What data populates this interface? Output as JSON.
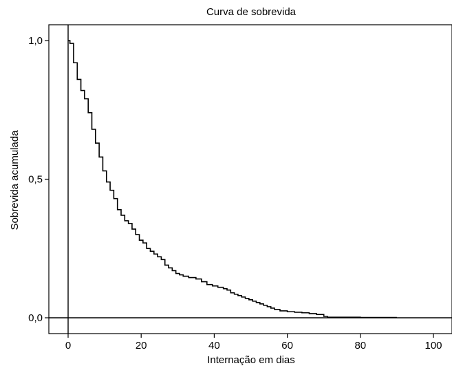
{
  "chart_data": {
    "type": "line",
    "title": "Curva de sobrevida",
    "xlabel": "Internação em dias",
    "ylabel": "Sobrevida acumulada",
    "xlim": [
      -5,
      105
    ],
    "ylim": [
      -0.06,
      1.05
    ],
    "x_ticks": [
      0,
      20,
      40,
      60,
      80,
      100
    ],
    "x_tick_labels": [
      "0",
      "20",
      "40",
      "60",
      "80",
      "100"
    ],
    "y_ticks": [
      0,
      0.5,
      1.0
    ],
    "y_tick_labels": [
      "0,0",
      "0,5",
      "1,0"
    ],
    "grid": false,
    "reference_lines": {
      "x": 0,
      "y": 0
    },
    "colors": {
      "line": "#000000",
      "axes": "#000000"
    },
    "series": [
      {
        "step": "post",
        "x": [
          0,
          0.5,
          1.5,
          2.5,
          3.5,
          4.5,
          5.5,
          6.5,
          7.5,
          8.5,
          9.5,
          10.5,
          11.5,
          12.5,
          13.5,
          14.5,
          15.5,
          16.5,
          17.5,
          18.5,
          19.5,
          20.5,
          21.5,
          22.5,
          23.5,
          24.5,
          25.5,
          26.5,
          27.5,
          28.5,
          29.5,
          30.5,
          31.5,
          33,
          35,
          36.5,
          38,
          39.5,
          41,
          42.5,
          43.5,
          44.5,
          45.5,
          46.5,
          47.5,
          48.5,
          49.5,
          50.5,
          51.5,
          52.5,
          53.5,
          54.5,
          55.5,
          56.5,
          58,
          60,
          62,
          64,
          66,
          68,
          70,
          71,
          75,
          80,
          90
        ],
        "y": [
          1.0,
          0.99,
          0.92,
          0.86,
          0.82,
          0.79,
          0.74,
          0.68,
          0.63,
          0.58,
          0.53,
          0.49,
          0.46,
          0.43,
          0.39,
          0.37,
          0.35,
          0.34,
          0.32,
          0.3,
          0.28,
          0.27,
          0.25,
          0.24,
          0.23,
          0.22,
          0.21,
          0.19,
          0.18,
          0.17,
          0.16,
          0.155,
          0.15,
          0.145,
          0.14,
          0.13,
          0.12,
          0.115,
          0.11,
          0.105,
          0.1,
          0.09,
          0.085,
          0.08,
          0.075,
          0.07,
          0.065,
          0.06,
          0.055,
          0.05,
          0.045,
          0.04,
          0.035,
          0.03,
          0.025,
          0.022,
          0.02,
          0.018,
          0.015,
          0.012,
          0.005,
          0.002,
          0.002,
          0.001,
          0.001
        ]
      }
    ]
  }
}
